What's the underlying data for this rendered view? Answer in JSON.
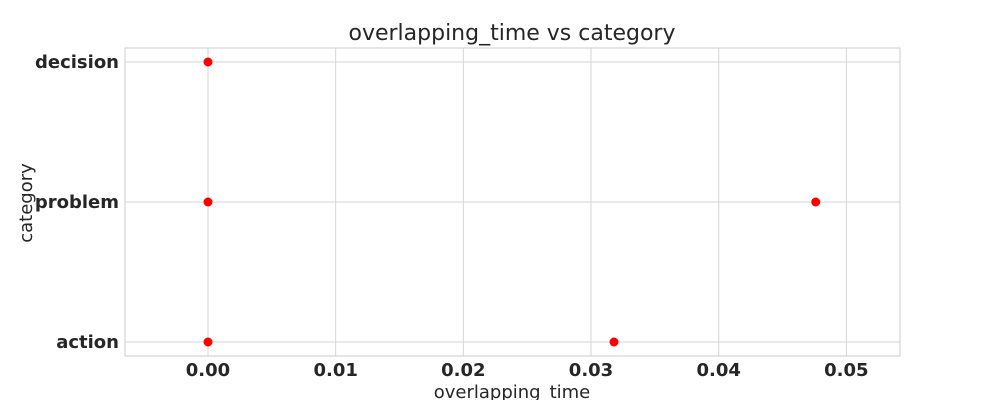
{
  "chart_data": {
    "type": "scatter",
    "title": "overlapping_time vs category",
    "xlabel": "overlapping_time",
    "ylabel": "category",
    "xlim": [
      -0.0065,
      0.0542
    ],
    "xticks": [
      0.0,
      0.01,
      0.02,
      0.03,
      0.04,
      0.05
    ],
    "xtick_labels": [
      "0.00",
      "0.01",
      "0.02",
      "0.03",
      "0.04",
      "0.05"
    ],
    "categories": [
      "action",
      "problem",
      "decision"
    ],
    "grid": true,
    "marker_color": "#ff0000",
    "points": [
      {
        "x": 0.0,
        "y": "decision"
      },
      {
        "x": 0.0,
        "y": "problem"
      },
      {
        "x": 0.0476,
        "y": "problem"
      },
      {
        "x": 0.0,
        "y": "action"
      },
      {
        "x": 0.0318,
        "y": "action"
      }
    ]
  }
}
